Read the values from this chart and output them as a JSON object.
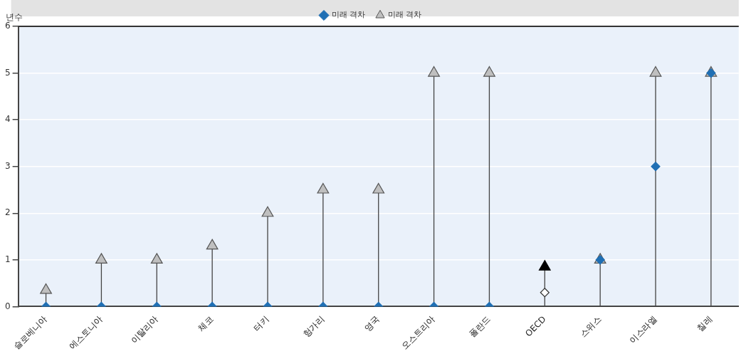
{
  "chart_data": {
    "type": "lollipop",
    "ylabel": "년수",
    "categories": [
      "슬로베니아",
      "에스토니아",
      "이탈리아",
      "체코",
      "터키",
      "헝가리",
      "영국",
      "오스트리아",
      "폴란드",
      "OECD",
      "스위스",
      "이스라엘",
      "칠레"
    ],
    "series": [
      {
        "name": "미래 격차",
        "type": "scatter",
        "marker": "diamond",
        "color": "#1f6fb4",
        "colors": [
          "#1f6fb4",
          "#1f6fb4",
          "#1f6fb4",
          "#1f6fb4",
          "#1f6fb4",
          "#1f6fb4",
          "#1f6fb4",
          "#1f6fb4",
          "#1f6fb4",
          "#ffffff",
          "#1f6fb4",
          "#1f6fb4",
          "#1f6fb4"
        ],
        "values": [
          0,
          0,
          0,
          0,
          0,
          0,
          0,
          0,
          0,
          0.3,
          1,
          3,
          5
        ]
      },
      {
        "name": "미래 격차",
        "marker": "triangle",
        "color": "#bfbfbf",
        "colors": [
          "#bfbfbf",
          "#bfbfbf",
          "#bfbfbf",
          "#bfbfbf",
          "#bfbfbf",
          "#bfbfbf",
          "#bfbfbf",
          "#bfbfbf",
          "#bfbfbf",
          "#000000",
          "#bfbfbf",
          "#bfbfbf",
          "#bfbfbf"
        ],
        "values": [
          0.35,
          1,
          1,
          1.3,
          2,
          2.5,
          2.5,
          5,
          5,
          0.85,
          1,
          5,
          5
        ]
      }
    ],
    "ylim": [
      0,
      6
    ],
    "yticks": [
      0,
      1,
      2,
      3,
      4,
      5,
      6
    ],
    "grid": "y",
    "legend": "top"
  }
}
